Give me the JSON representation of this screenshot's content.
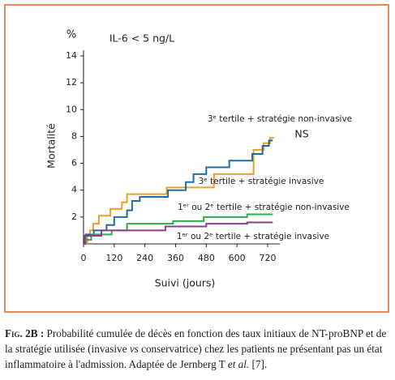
{
  "chart_data": {
    "type": "step-line",
    "y_unit": "%",
    "annotation": "IL-6 < 5 ng/L",
    "significance": "NS",
    "ylabel": "Mortalité",
    "xlabel": "Suivi (jours)",
    "xlim": [
      0,
      760
    ],
    "xticks": [
      0,
      120,
      240,
      360,
      480,
      600,
      720
    ],
    "ylim": [
      0,
      14
    ],
    "yticks": [
      2,
      4,
      6,
      8,
      10,
      12,
      14
    ],
    "series": [
      {
        "name": "3ᵉ tertile + stratégie non-invasive",
        "color": "#eaa128",
        "x": [
          0,
          15,
          25,
          38,
          60,
          105,
          150,
          170,
          325,
          510,
          665,
          705,
          730,
          745
        ],
        "values": [
          0,
          0.6,
          1.0,
          1.5,
          2.1,
          2.6,
          3.1,
          3.7,
          4.2,
          5.2,
          7.0,
          7.5,
          7.9,
          7.9
        ]
      },
      {
        "name": "3ᵉ tertile + stratégie invasive",
        "color": "#1d6ea5",
        "x": [
          0,
          8,
          40,
          90,
          120,
          170,
          190,
          220,
          330,
          400,
          430,
          480,
          570,
          660,
          700,
          725,
          740
        ],
        "values": [
          0,
          0.7,
          1.0,
          1.4,
          2.0,
          2.5,
          3.2,
          3.5,
          4.0,
          4.6,
          5.2,
          5.7,
          6.2,
          6.7,
          7.3,
          7.7,
          7.7
        ]
      },
      {
        "name": "1ᵉʳ ou 2ᵉ tertile + stratégie non-invasive",
        "color": "#2fab4c",
        "x": [
          0,
          5,
          30,
          110,
          170,
          350,
          470,
          640,
          740
        ],
        "values": [
          0,
          0.3,
          0.7,
          1.0,
          1.5,
          1.7,
          2.0,
          2.2,
          2.2
        ]
      },
      {
        "name": "1ᵉʳ ou 2ᵉ tertile + stratégie invasive",
        "color": "#8e3b92",
        "x": [
          0,
          5,
          70,
          320,
          480,
          640,
          740
        ],
        "values": [
          0,
          0.6,
          1.0,
          1.3,
          1.5,
          1.6,
          1.6
        ]
      }
    ]
  },
  "caption": {
    "label": "Fig. 2B :",
    "parts": [
      "Probabilité cumulée de décès en fonction des taux initiaux de NT-proBNP et de la stratégie utilisée (invasive ",
      "vs",
      " conservatrice) chez les patients ne présentant pas un état inflammatoire à l'admission. Adaptée de Jernberg T ",
      "et al.",
      " [7]."
    ]
  }
}
